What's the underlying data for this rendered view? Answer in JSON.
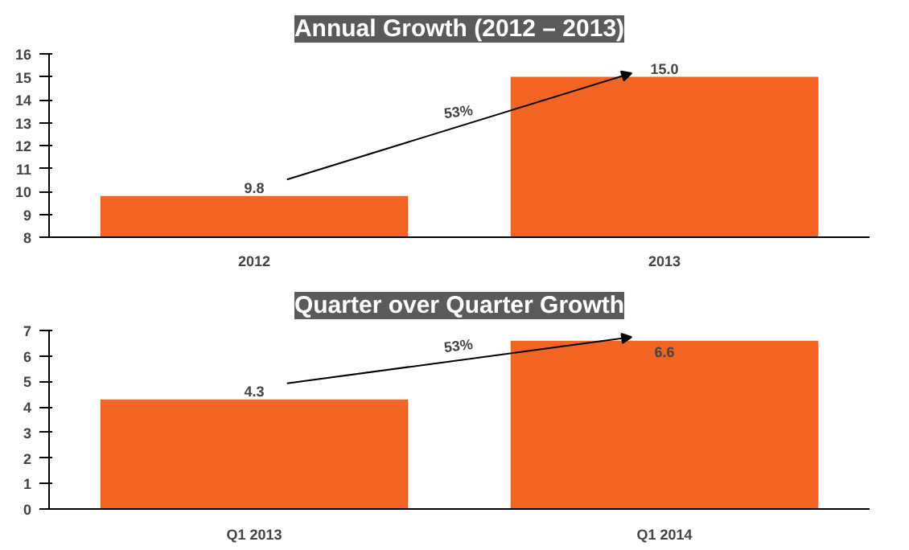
{
  "chart_data": [
    {
      "type": "bar",
      "title": "Annual Growth (2012 – 2013)",
      "categories": [
        "2012",
        "2013"
      ],
      "values": [
        9.8,
        15.0
      ],
      "value_labels": [
        "9.8",
        "15.0"
      ],
      "color": "#f26522",
      "ylim": [
        8,
        16
      ],
      "yticks": [
        8,
        9,
        10,
        11,
        12,
        13,
        14,
        15,
        16
      ],
      "grid": false,
      "annotations": [
        "53%"
      ]
    },
    {
      "type": "bar",
      "title": "Quarter over Quarter Growth",
      "categories": [
        "Q1 2013",
        "Q1 2014"
      ],
      "values": [
        4.3,
        6.6
      ],
      "value_labels": [
        "4.3",
        "6.6"
      ],
      "color": "#f26522",
      "ylim": [
        0,
        7
      ],
      "yticks": [
        0,
        1,
        2,
        3,
        4,
        5,
        6,
        7
      ],
      "grid": false,
      "annotations": [
        "53%"
      ]
    }
  ]
}
